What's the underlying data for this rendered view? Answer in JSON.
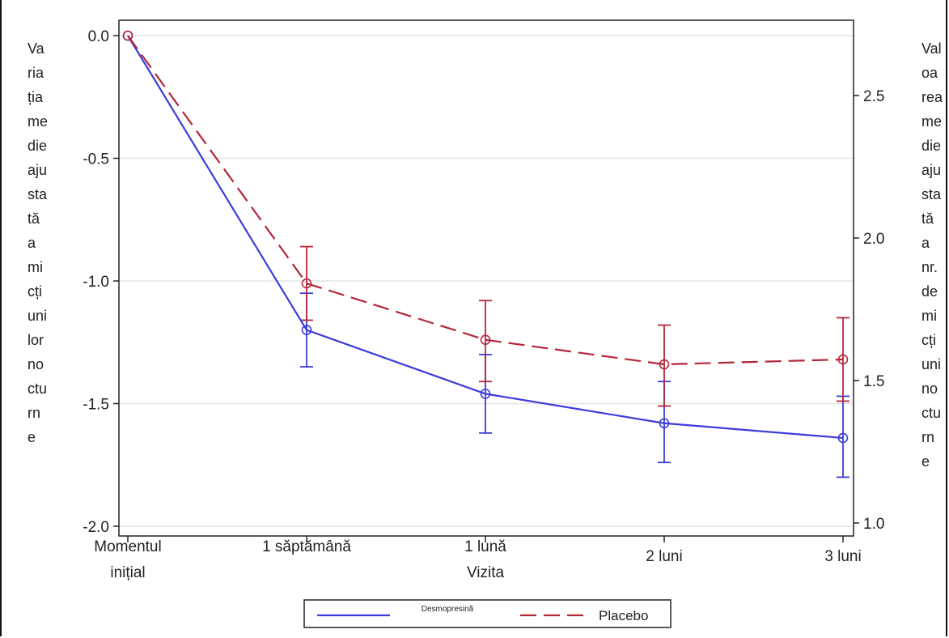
{
  "chart_data": {
    "type": "line",
    "categories": [
      "Momentul inițial",
      "1 săptămână",
      "1 lună",
      "2 luni",
      "3 luni"
    ],
    "xlabel": "Vizita",
    "ylabel_left": [
      "Va",
      "ria",
      "ția",
      "me",
      "die",
      "aju",
      "sta",
      "tă",
      "a",
      "mi",
      "cți",
      "uni",
      "lor",
      "no",
      "ctu",
      "rn",
      "e"
    ],
    "ylabel_right": [
      "Val",
      "oa",
      "rea",
      "me",
      "die",
      "aju",
      "sta",
      "tă",
      "a",
      "nr.",
      "de",
      "mi",
      "cți",
      "uni",
      "no",
      "ctu",
      "rn",
      "e"
    ],
    "ylim_left": [
      -2.0,
      0.0
    ],
    "yticks_left": [
      "0.0",
      "-0.5",
      "-1.0",
      "-1.5",
      "-2.0"
    ],
    "yticks_right": [
      "2.5",
      "2.0",
      "1.5",
      "1.0"
    ],
    "grid": true,
    "legend_position": "bottom",
    "series": [
      {
        "name": "Desmopresină",
        "color": "#3c3cdc",
        "style": "solid",
        "values": [
          0.0,
          -1.2,
          -1.46,
          -1.58,
          -1.64
        ],
        "err_low": [
          0.0,
          -1.35,
          -1.62,
          -1.74,
          -1.8
        ],
        "err_high": [
          0.0,
          -1.05,
          -1.3,
          -1.41,
          -1.47
        ]
      },
      {
        "name": "Placebo",
        "color": "#b5263a",
        "style": "dashed",
        "values": [
          0.0,
          -1.01,
          -1.24,
          -1.34,
          -1.32
        ],
        "err_low": [
          0.0,
          -1.16,
          -1.41,
          -1.51,
          -1.49
        ],
        "err_high": [
          0.0,
          -0.86,
          -1.08,
          -1.18,
          -1.15
        ]
      }
    ]
  }
}
